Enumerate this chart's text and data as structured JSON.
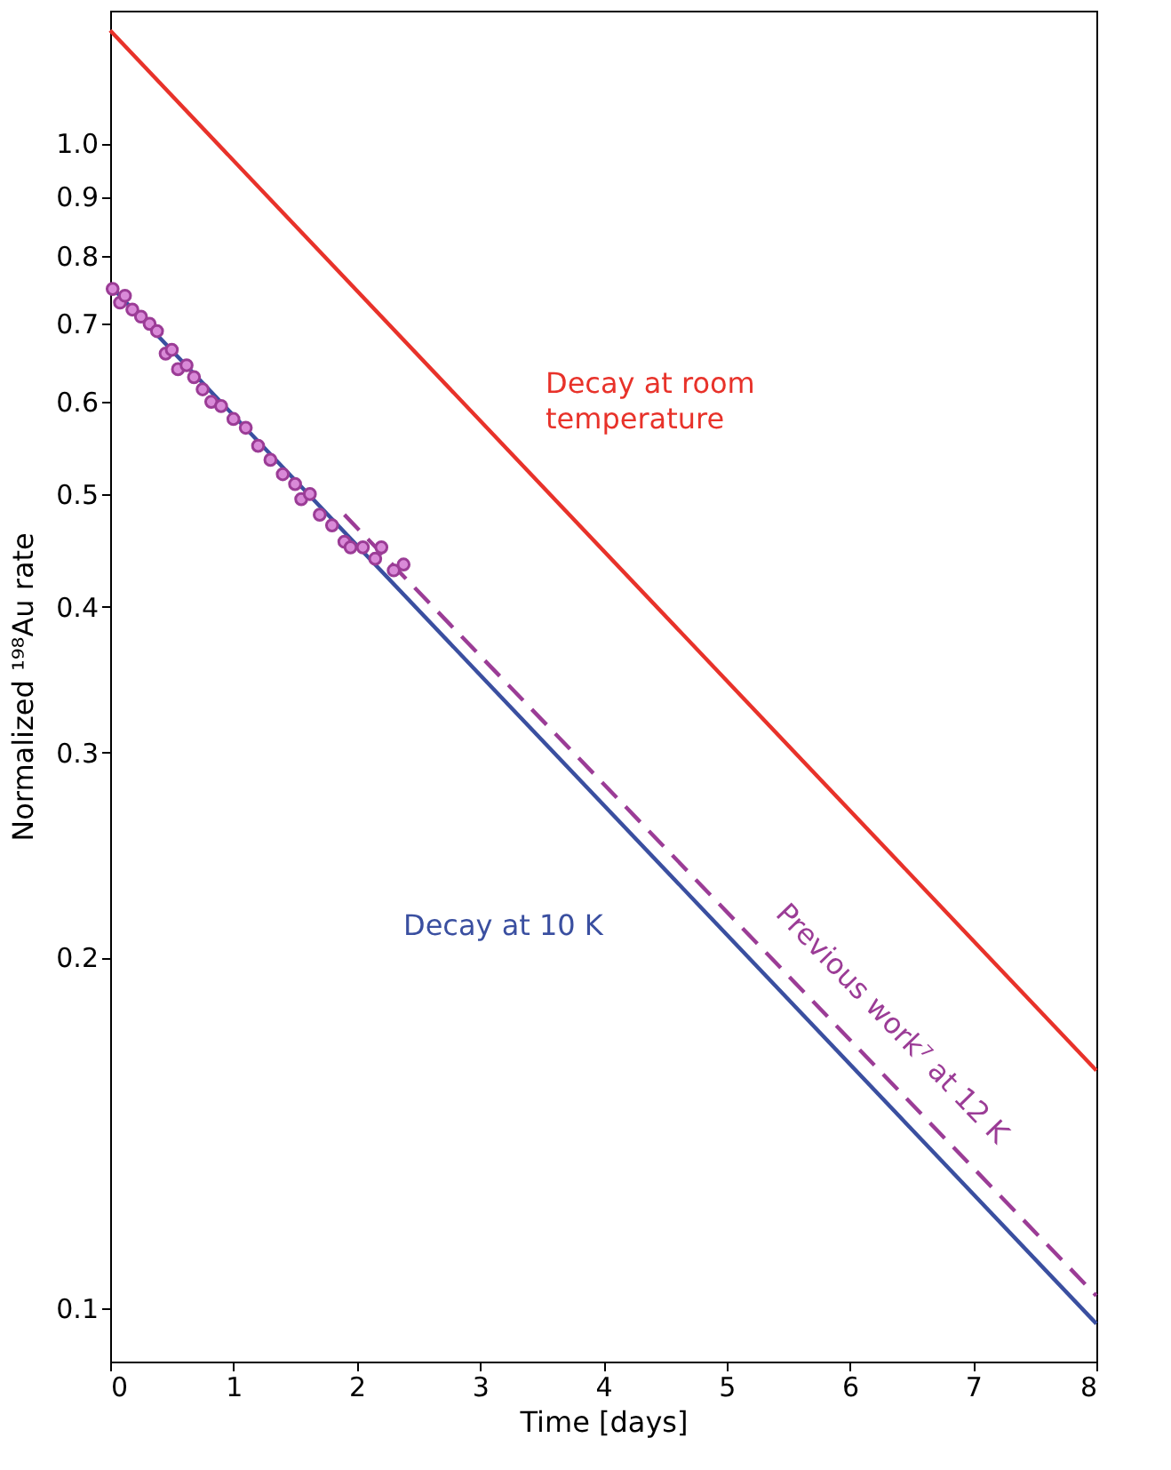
{
  "chart_data": {
    "type": "line",
    "xlabel": "Time [days]",
    "ylabel": "Normalized ¹⁹⁸Au rate",
    "log": "y",
    "legend": false,
    "grid": false,
    "xlim": [
      0,
      8
    ],
    "xticks": [
      0,
      1,
      2,
      3,
      4,
      5,
      6,
      7,
      8
    ],
    "ylim": [
      0.09,
      1.3
    ],
    "yticks": [
      0.1,
      0.2,
      0.3,
      0.4,
      0.5,
      0.6,
      0.7,
      0.8,
      0.9,
      {
        "value": 1,
        "label": "1.0"
      }
    ],
    "series": [
      {
        "name": "Decay at room temperature",
        "color": "#e8322a",
        "type": "line",
        "marker": "none",
        "x": [
          0,
          8
        ],
        "values": [
          1.25,
          0.16
        ]
      },
      {
        "name": "Decay at 10 K",
        "color": "#3a4fa0",
        "type": "line",
        "marker": "none",
        "x": [
          0,
          8
        ],
        "values": [
          0.755,
          0.097
        ]
      },
      {
        "name": "Previous work⁷ at 12 K",
        "color": "#9b3c96",
        "type": "line",
        "line_style": "dashed",
        "marker": "none",
        "x": [
          1.9,
          8
        ],
        "values": [
          0.48,
          0.1025
        ]
      },
      {
        "color": "#9b3c96",
        "type": "scatter",
        "marker": "circle",
        "x": [
          0.02,
          0.08,
          0.12,
          0.18,
          0.25,
          0.32,
          0.38,
          0.45,
          0.5,
          0.55,
          0.62,
          0.68,
          0.75,
          0.82,
          0.9,
          1.0,
          1.1,
          1.2,
          1.3,
          1.4,
          1.5,
          1.55,
          1.62,
          1.7,
          1.8,
          1.9,
          1.95,
          2.05,
          2.15,
          2.2,
          2.3,
          2.38
        ],
        "values": [
          0.75,
          0.73,
          0.74,
          0.72,
          0.71,
          0.7,
          0.69,
          0.66,
          0.665,
          0.64,
          0.645,
          0.63,
          0.615,
          0.6,
          0.595,
          0.58,
          0.57,
          0.55,
          0.535,
          0.52,
          0.51,
          0.495,
          0.5,
          0.48,
          0.47,
          0.455,
          0.45,
          0.45,
          0.44,
          0.45,
          0.43,
          0.435
        ]
      }
    ]
  }
}
